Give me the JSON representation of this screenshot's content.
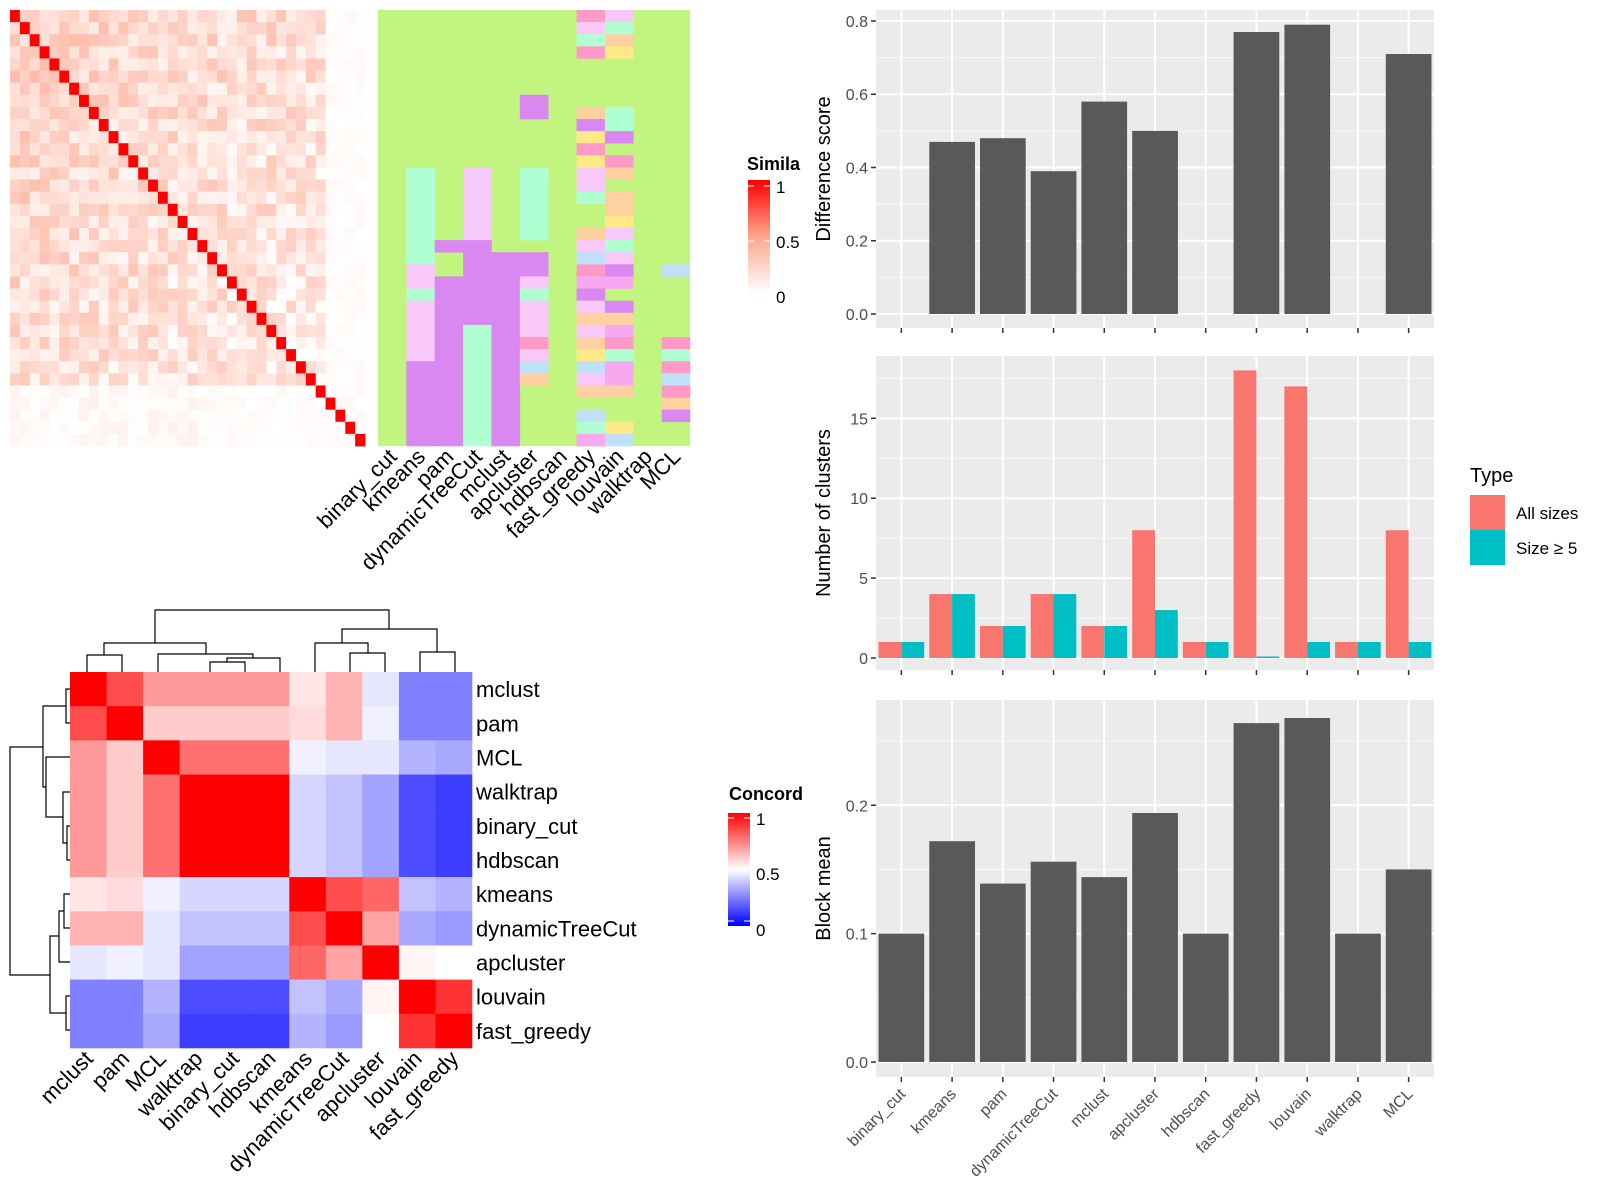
{
  "figure": {
    "similarity_legend_title": "Simila",
    "similarity_legend_ticks": [
      "1",
      "0.5",
      "0"
    ],
    "concordance_legend_title": "Concord",
    "concordance_legend_ticks": [
      "1",
      "0.5",
      "0"
    ],
    "type_legend_title": "Type",
    "type_legend_items": [
      {
        "label": "All sizes",
        "color": "#F8766D"
      },
      {
        "label": "Size ≥ 5",
        "color": "#00BFC4"
      }
    ]
  },
  "chart_data": [
    {
      "type": "heatmap",
      "id": "similarity",
      "n": 36,
      "diagonal_color": "#FF0000",
      "color_scale": {
        "low": "#FFFFFF",
        "mid": "#FCA68E",
        "high": "#FF0000",
        "limits": [
          0,
          1
        ]
      }
    },
    {
      "type": "heatmap",
      "id": "cluster_assignments",
      "columns": [
        "binary_cut",
        "kmeans",
        "pam",
        "dynamicTreeCut",
        "mclust",
        "apcluster",
        "hdbscan",
        "fast_greedy",
        "louvain",
        "walktrap",
        "MCL"
      ],
      "background_color": "#C2F580"
    },
    {
      "type": "heatmap",
      "id": "concordance",
      "rows": [
        "mclust",
        "pam",
        "MCL",
        "walktrap",
        "binary_cut",
        "hdbscan",
        "kmeans",
        "dynamicTreeCut",
        "apcluster",
        "louvain",
        "fast_greedy"
      ],
      "columns": [
        "mclust",
        "pam",
        "MCL",
        "walktrap",
        "binary_cut",
        "hdbscan",
        "kmeans",
        "dynamicTreeCut",
        "apcluster",
        "louvain",
        "fast_greedy"
      ],
      "values": [
        [
          1.0,
          0.85,
          0.7,
          0.7,
          0.7,
          0.7,
          0.55,
          0.65,
          0.45,
          0.25,
          0.25
        ],
        [
          0.85,
          1.0,
          0.6,
          0.6,
          0.6,
          0.6,
          0.57,
          0.65,
          0.47,
          0.25,
          0.25
        ],
        [
          0.7,
          0.6,
          1.0,
          0.78,
          0.78,
          0.78,
          0.47,
          0.45,
          0.45,
          0.35,
          0.33
        ],
        [
          0.7,
          0.6,
          0.78,
          1.0,
          1.0,
          1.0,
          0.42,
          0.38,
          0.32,
          0.15,
          0.12
        ],
        [
          0.7,
          0.6,
          0.78,
          1.0,
          1.0,
          1.0,
          0.42,
          0.38,
          0.32,
          0.15,
          0.12
        ],
        [
          0.7,
          0.6,
          0.78,
          1.0,
          1.0,
          1.0,
          0.42,
          0.38,
          0.32,
          0.15,
          0.12
        ],
        [
          0.55,
          0.57,
          0.47,
          0.42,
          0.42,
          0.42,
          1.0,
          0.85,
          0.8,
          0.38,
          0.35
        ],
        [
          0.65,
          0.65,
          0.45,
          0.38,
          0.38,
          0.38,
          0.85,
          1.0,
          0.68,
          0.33,
          0.3
        ],
        [
          0.45,
          0.47,
          0.45,
          0.32,
          0.32,
          0.32,
          0.8,
          0.68,
          1.0,
          0.52,
          0.5
        ],
        [
          0.25,
          0.25,
          0.35,
          0.15,
          0.15,
          0.15,
          0.38,
          0.33,
          0.52,
          1.0,
          0.9
        ],
        [
          0.25,
          0.25,
          0.33,
          0.12,
          0.12,
          0.12,
          0.35,
          0.3,
          0.5,
          0.9,
          1.0
        ]
      ],
      "color_scale": {
        "low": "#0000FF",
        "mid": "#FFFFFF",
        "high": "#FF0000",
        "limits": [
          0,
          1
        ]
      }
    },
    {
      "type": "bar",
      "id": "difference_score",
      "categories": [
        "binary_cut",
        "kmeans",
        "pam",
        "dynamicTreeCut",
        "mclust",
        "apcluster",
        "hdbscan",
        "fast_greedy",
        "louvain",
        "walktrap",
        "MCL"
      ],
      "values": [
        0,
        0.47,
        0.48,
        0.39,
        0.58,
        0.5,
        0,
        0.77,
        0.79,
        0,
        0.71
      ],
      "ylabel": "Difference score",
      "ylim": [
        0,
        0.83
      ],
      "yticks": [
        "0.0",
        "0.2",
        "0.4",
        "0.6",
        "0.8"
      ],
      "bar_color": "#595959",
      "grid": true
    },
    {
      "type": "bar",
      "id": "number_of_clusters",
      "categories": [
        "binary_cut",
        "kmeans",
        "pam",
        "dynamicTreeCut",
        "mclust",
        "apcluster",
        "hdbscan",
        "fast_greedy",
        "louvain",
        "walktrap",
        "MCL"
      ],
      "series": [
        {
          "name": "All sizes",
          "color": "#F8766D",
          "values": [
            1,
            4,
            2,
            4,
            2,
            8,
            1,
            18,
            17,
            1,
            8
          ]
        },
        {
          "name": "Size ≥ 5",
          "color": "#00BFC4",
          "values": [
            1,
            4,
            2,
            4,
            2,
            3,
            1,
            0,
            1,
            1,
            1
          ]
        }
      ],
      "ylabel": "Number of clusters",
      "ylim": [
        0,
        18.9
      ],
      "yticks": [
        "0",
        "5",
        "10",
        "15"
      ],
      "legend": "right",
      "grid": true
    },
    {
      "type": "bar",
      "id": "block_mean",
      "categories": [
        "binary_cut",
        "kmeans",
        "pam",
        "dynamicTreeCut",
        "mclust",
        "apcluster",
        "hdbscan",
        "fast_greedy",
        "louvain",
        "walktrap",
        "MCL"
      ],
      "values": [
        0.1,
        0.172,
        0.139,
        0.156,
        0.144,
        0.194,
        0.1,
        0.264,
        0.268,
        0.1,
        0.15
      ],
      "ylabel": "Block mean",
      "ylim": [
        0,
        0.282
      ],
      "yticks": [
        "0.0",
        "0.1",
        "0.2"
      ],
      "bar_color": "#595959",
      "grid": true
    }
  ]
}
